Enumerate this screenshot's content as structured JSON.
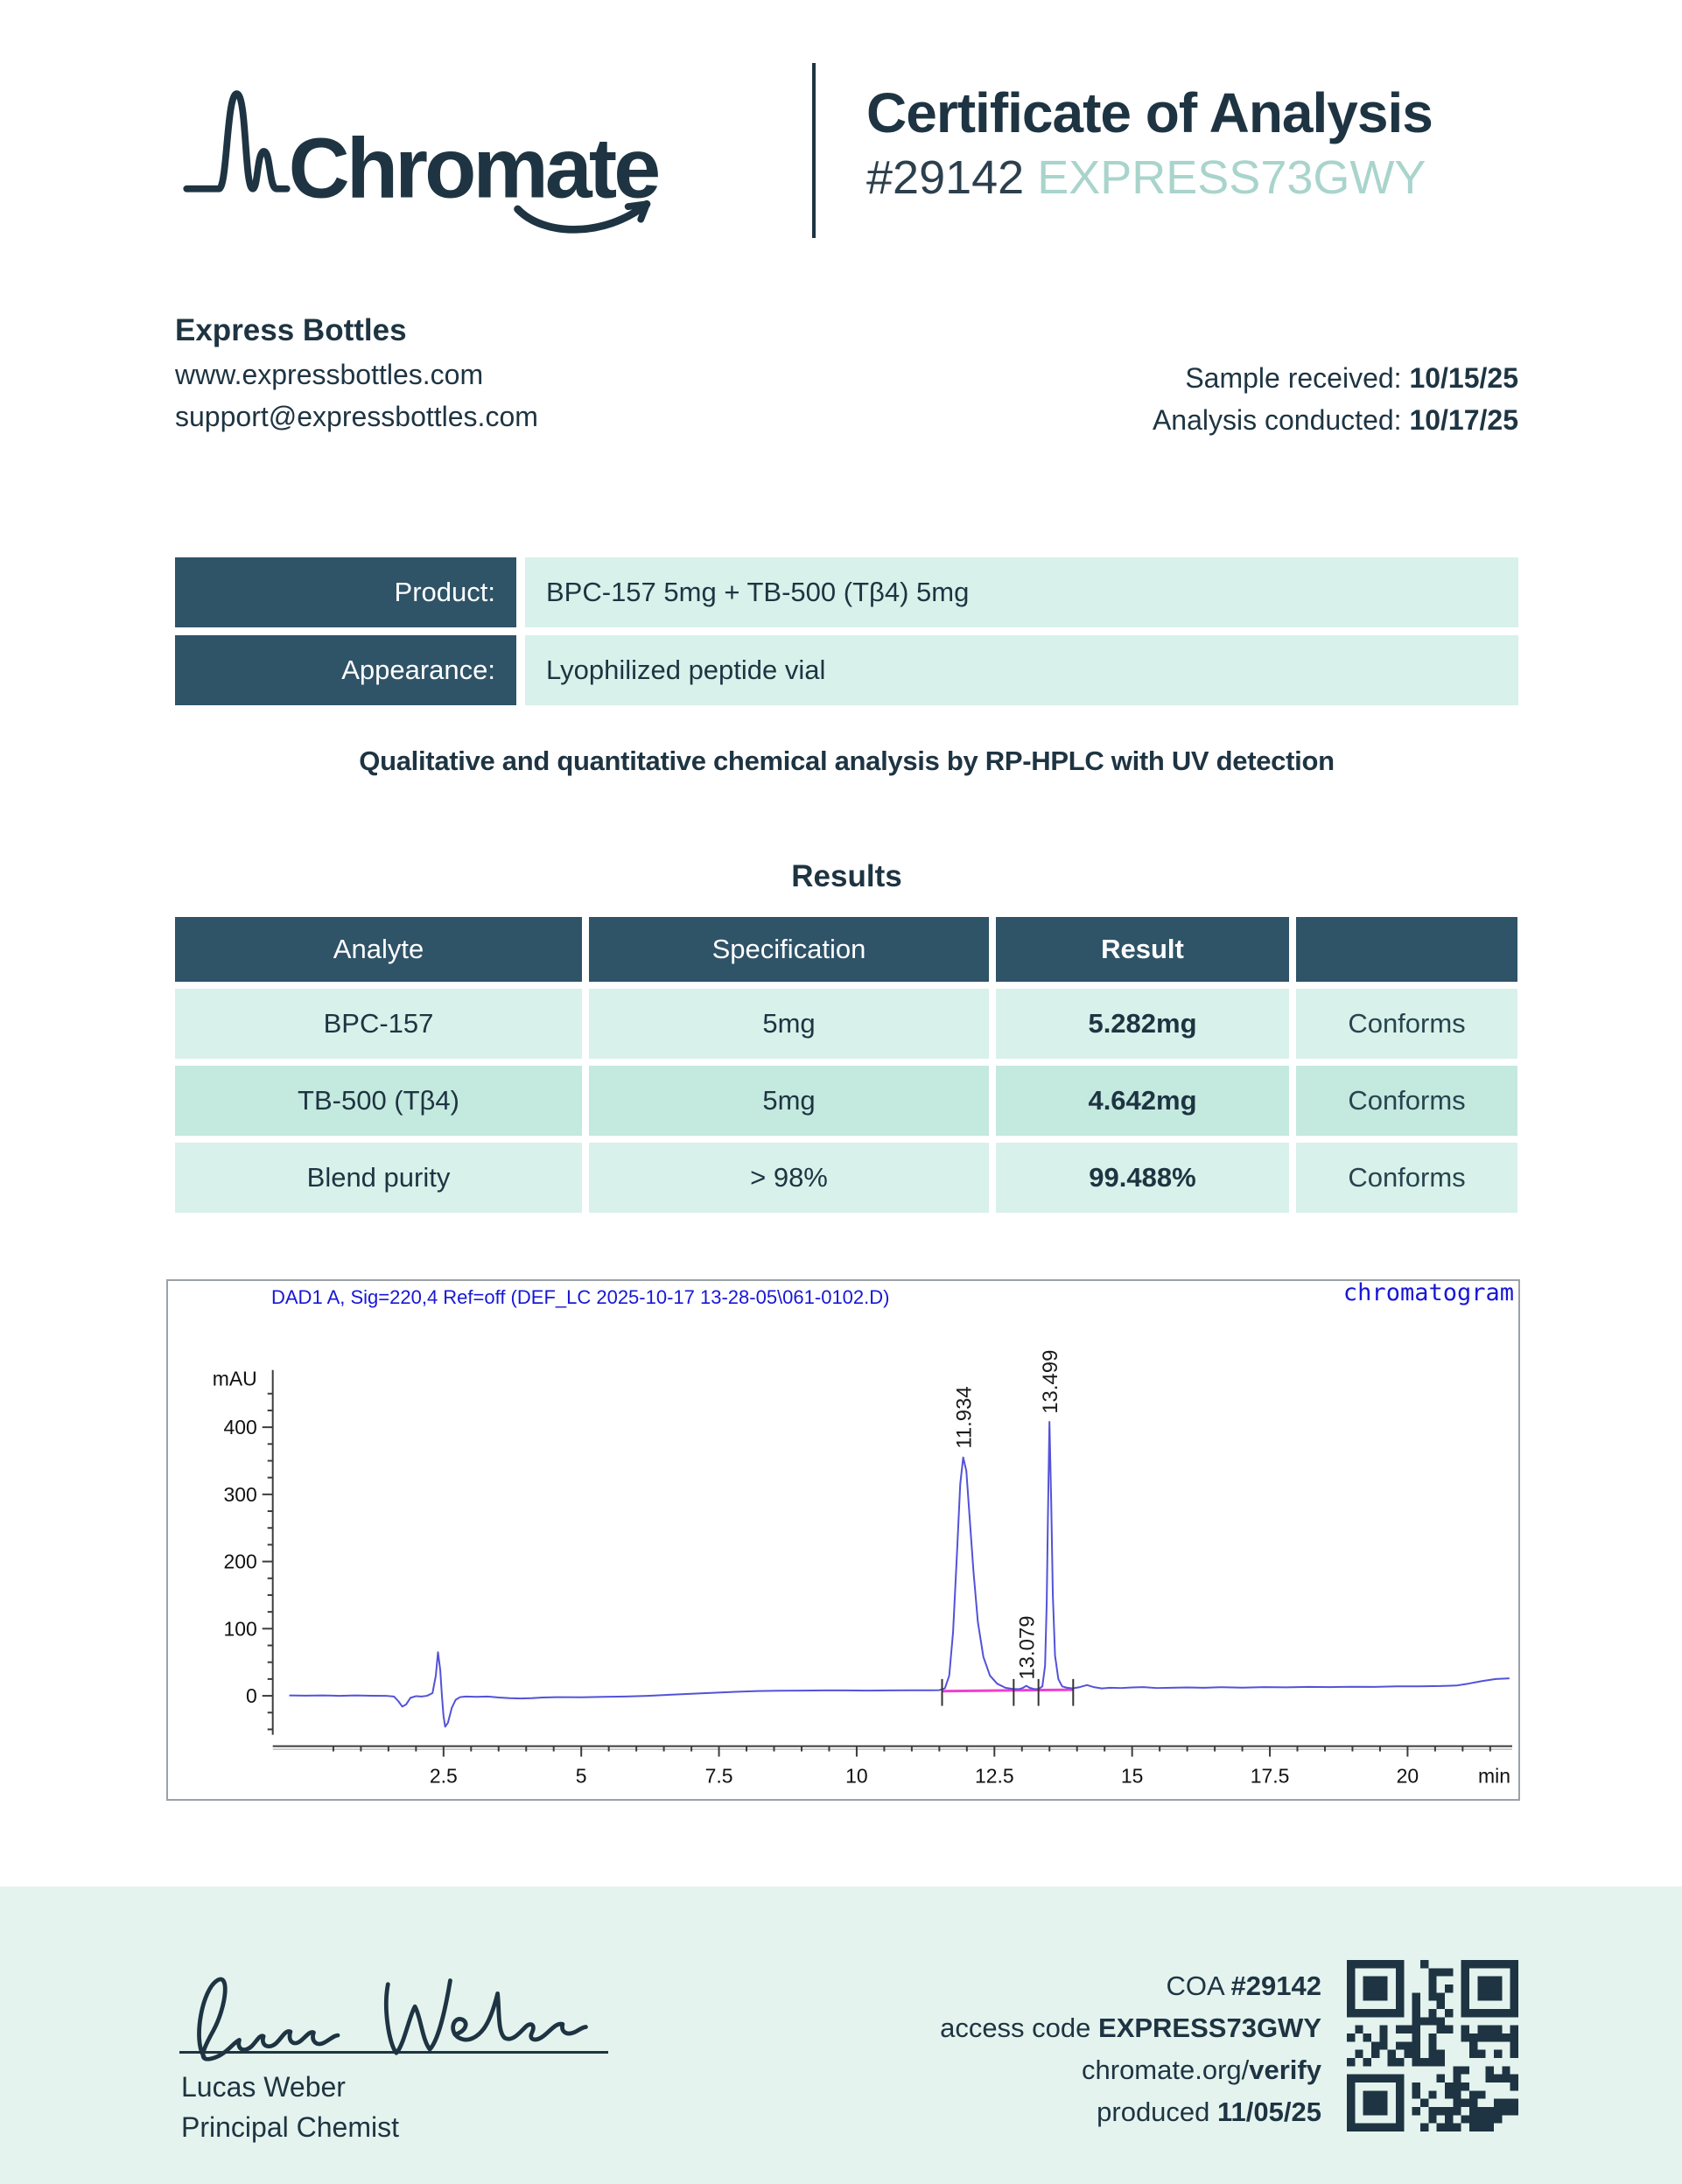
{
  "colors": {
    "navy": "#1e3442",
    "slate": "#2f5367",
    "mint": "#d8f1ea",
    "mint_dark": "#c4e9df",
    "band": "#e4f3ee",
    "teal_light": "#a9d4cc",
    "chart_blue": "#1717d6",
    "trace_blue": "#5352d8",
    "magenta": "#ee3fd0"
  },
  "header": {
    "brand": "Chromate",
    "title": "Certificate of Analysis",
    "coa_number": "#29142",
    "access_code": "EXPRESS73GWY"
  },
  "client": {
    "name": "Express Bottles",
    "website": "www.expressbottles.com",
    "email": "support@expressbottles.com",
    "received_label": "Sample received: ",
    "received_date": "10/15/25",
    "conducted_label": "Analysis conducted: ",
    "conducted_date": "10/17/25"
  },
  "product_table": {
    "rows": [
      {
        "label": "Product:",
        "value": "BPC-157 5mg + TB-500 (Tβ4) 5mg"
      },
      {
        "label": "Appearance:",
        "value": "Lyophilized peptide vial"
      }
    ]
  },
  "method_line": "Qualitative and quantitative chemical analysis by RP-HPLC with UV detection",
  "results": {
    "title": "Results",
    "headers": {
      "analyte": "Analyte",
      "specification": "Specification",
      "result": "Result",
      "status": ""
    },
    "rows": [
      {
        "analyte": "BPC-157",
        "specification": "5mg",
        "result": "5.282mg",
        "status": "Conforms"
      },
      {
        "analyte": "TB-500 (Tβ4)",
        "specification": "5mg",
        "result": "4.642mg",
        "status": "Conforms"
      },
      {
        "analyte": "Blend purity",
        "specification": "> 98%",
        "result": "99.488%",
        "status": "Conforms"
      }
    ]
  },
  "chart_data": {
    "type": "line",
    "title": "chromatogram",
    "signal_label": "DAD1 A, Sig=220,4 Ref=off (DEF_LC 2025-10-17 13-28-05\\061-0102.D)",
    "ylabel": "mAU",
    "xlabel": "min",
    "xlim": [
      -0.6,
      21.9
    ],
    "ylim": [
      -75,
      480
    ],
    "x_ticks": [
      2.5,
      5,
      7.5,
      10,
      12.5,
      15,
      17.5,
      20
    ],
    "x_minor_step": 0.5,
    "y_ticks": [
      0,
      100,
      200,
      300,
      400
    ],
    "y_minor_step": 25,
    "grid": false,
    "legend": "none",
    "peaks": [
      {
        "label": "11.934",
        "x": 11.934,
        "apex": 355,
        "label_base": 368
      },
      {
        "label": "13.079",
        "x": 13.079,
        "apex": 15,
        "label_base": 24
      },
      {
        "label": "13.499",
        "x": 13.499,
        "apex": 408,
        "label_base": 420
      }
    ],
    "integration": {
      "baseline": {
        "x1": 11.55,
        "y1": 7,
        "x2": 13.93,
        "y2": 9
      },
      "markers": [
        11.55,
        12.85,
        13.3,
        13.93
      ]
    },
    "trace": [
      [
        -0.3,
        0.5
      ],
      [
        0,
        0.2
      ],
      [
        0.3,
        0.6
      ],
      [
        0.6,
        0
      ],
      [
        0.9,
        0.5
      ],
      [
        1.2,
        0.1
      ],
      [
        1.45,
        0
      ],
      [
        1.6,
        -1
      ],
      [
        1.68,
        -8
      ],
      [
        1.75,
        -16
      ],
      [
        1.82,
        -13
      ],
      [
        1.9,
        -3
      ],
      [
        2.0,
        -0.5
      ],
      [
        2.1,
        -1
      ],
      [
        2.2,
        0
      ],
      [
        2.3,
        4
      ],
      [
        2.36,
        30
      ],
      [
        2.4,
        65
      ],
      [
        2.44,
        38
      ],
      [
        2.47,
        0
      ],
      [
        2.5,
        -30
      ],
      [
        2.53,
        -46
      ],
      [
        2.58,
        -40
      ],
      [
        2.65,
        -18
      ],
      [
        2.72,
        -6
      ],
      [
        2.8,
        -2
      ],
      [
        2.9,
        -1
      ],
      [
        3.1,
        -1.5
      ],
      [
        3.3,
        -1
      ],
      [
        3.5,
        -2.5
      ],
      [
        3.7,
        -3.5
      ],
      [
        3.9,
        -4
      ],
      [
        4.1,
        -3.5
      ],
      [
        4.3,
        -2.5
      ],
      [
        4.6,
        -2
      ],
      [
        5.0,
        -2.2
      ],
      [
        5.4,
        -1.5
      ],
      [
        5.8,
        -1
      ],
      [
        6.2,
        0
      ],
      [
        6.6,
        1.5
      ],
      [
        7.0,
        3
      ],
      [
        7.4,
        4.5
      ],
      [
        7.8,
        6
      ],
      [
        8.2,
        7
      ],
      [
        8.6,
        7.5
      ],
      [
        9.0,
        7.8
      ],
      [
        9.4,
        8
      ],
      [
        9.8,
        8
      ],
      [
        10.2,
        7.8
      ],
      [
        10.6,
        8
      ],
      [
        11.0,
        8.2
      ],
      [
        11.3,
        8.2
      ],
      [
        11.5,
        8.5
      ],
      [
        11.6,
        11
      ],
      [
        11.68,
        30
      ],
      [
        11.75,
        95
      ],
      [
        11.82,
        210
      ],
      [
        11.88,
        315
      ],
      [
        11.934,
        355
      ],
      [
        11.99,
        335
      ],
      [
        12.05,
        265
      ],
      [
        12.12,
        185
      ],
      [
        12.2,
        110
      ],
      [
        12.3,
        58
      ],
      [
        12.42,
        30
      ],
      [
        12.55,
        18
      ],
      [
        12.7,
        12
      ],
      [
        12.85,
        10
      ],
      [
        12.95,
        10
      ],
      [
        13.02,
        12
      ],
      [
        13.079,
        15
      ],
      [
        13.14,
        12
      ],
      [
        13.22,
        10
      ],
      [
        13.3,
        10
      ],
      [
        13.37,
        14
      ],
      [
        13.42,
        45
      ],
      [
        13.45,
        140
      ],
      [
        13.47,
        260
      ],
      [
        13.499,
        408
      ],
      [
        13.53,
        290
      ],
      [
        13.56,
        150
      ],
      [
        13.6,
        60
      ],
      [
        13.66,
        25
      ],
      [
        13.73,
        14
      ],
      [
        13.82,
        12
      ],
      [
        13.92,
        11
      ],
      [
        14.05,
        13
      ],
      [
        14.18,
        16
      ],
      [
        14.3,
        13
      ],
      [
        14.45,
        11
      ],
      [
        14.6,
        12
      ],
      [
        14.8,
        11.5
      ],
      [
        15.0,
        12.5
      ],
      [
        15.2,
        13
      ],
      [
        15.45,
        11.5
      ],
      [
        15.7,
        12
      ],
      [
        16.0,
        12.5
      ],
      [
        16.3,
        12
      ],
      [
        16.6,
        12.8
      ],
      [
        17.0,
        12.2
      ],
      [
        17.4,
        13
      ],
      [
        17.8,
        12.6
      ],
      [
        18.2,
        13.2
      ],
      [
        18.6,
        13
      ],
      [
        19.0,
        13.5
      ],
      [
        19.4,
        13.2
      ],
      [
        19.8,
        14
      ],
      [
        20.2,
        14.2
      ],
      [
        20.6,
        14.5
      ],
      [
        20.9,
        15.5
      ],
      [
        21.1,
        18
      ],
      [
        21.35,
        22
      ],
      [
        21.6,
        25
      ],
      [
        21.85,
        26
      ]
    ]
  },
  "footer": {
    "signature_name": "Lucas Weber",
    "signature_role": "Principal Chemist",
    "coa_label": "COA ",
    "coa_number": "#29142",
    "access_label": "access code ",
    "access_code": "EXPRESS73GWY",
    "verify_prefix": "chromate.org/",
    "verify_bold": "verify",
    "produced_label": "produced ",
    "produced_date": "11/05/25"
  }
}
